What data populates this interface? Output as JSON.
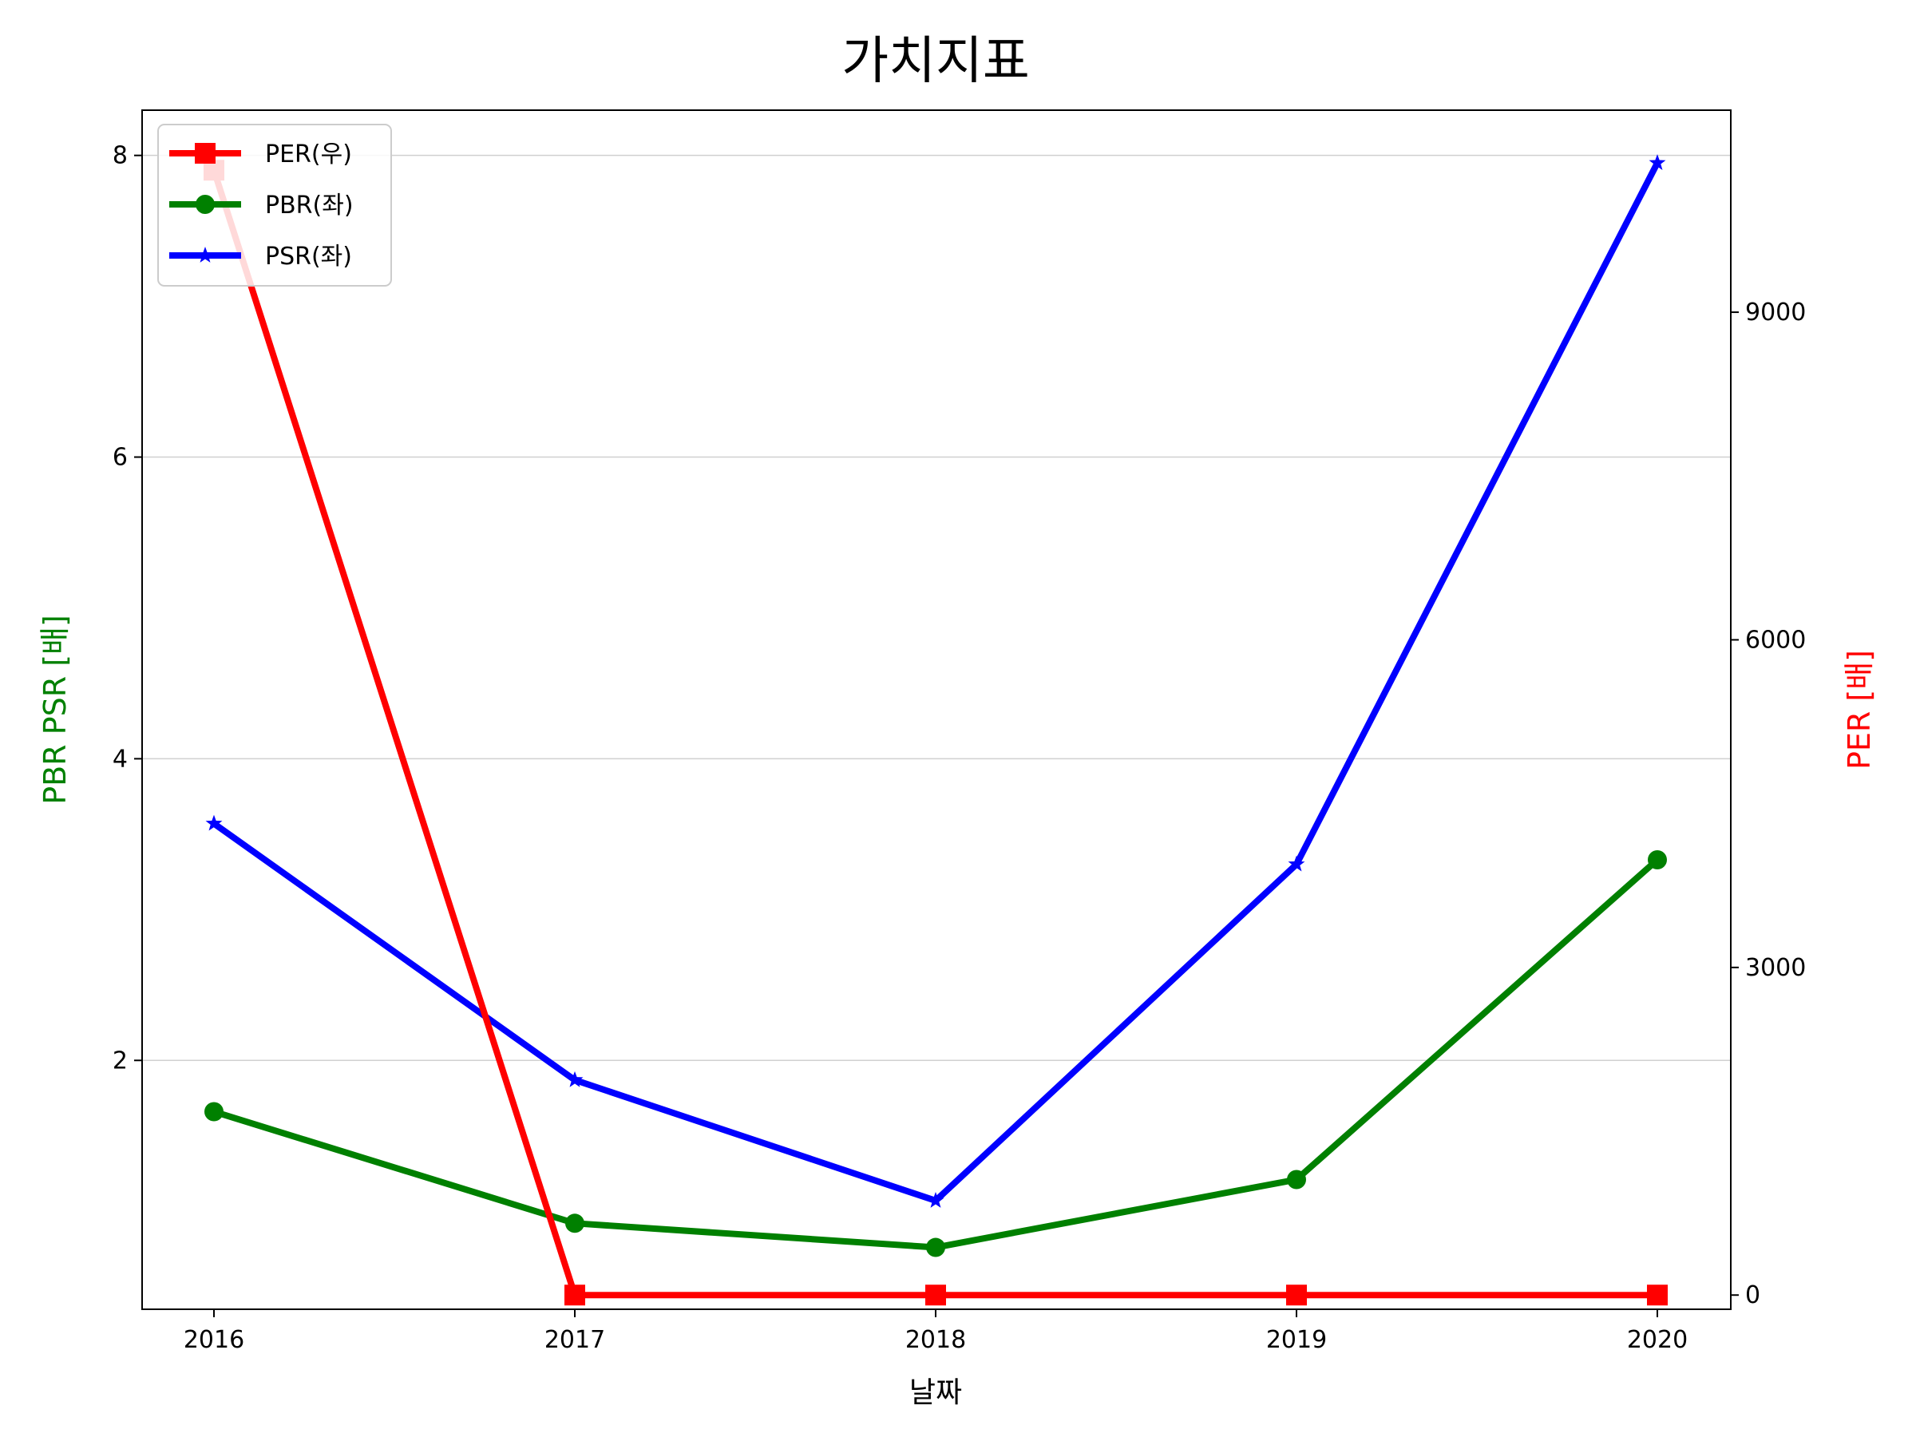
{
  "chart_data": {
    "type": "line",
    "title": "가치지표",
    "xlabel": "날짜",
    "ylabel_left": "PBR PSR [배]",
    "ylabel_right": "PER [배]",
    "categories": [
      "2016",
      "2017",
      "2018",
      "2019",
      "2020"
    ],
    "ylim_left": [
      0.35,
      8.3
    ],
    "ylim_right": [
      -130,
      10850
    ],
    "yticks_left": [
      2,
      4,
      6,
      8
    ],
    "yticks_right": [
      0,
      3000,
      6000,
      9000
    ],
    "grid": "horizontal",
    "legend_position": "top-left",
    "series": [
      {
        "name": "PER(우)",
        "axis": "right",
        "color": "#ff0000",
        "marker": "square",
        "values": [
          10300,
          0,
          0,
          0,
          0
        ]
      },
      {
        "name": "PBR(좌)",
        "axis": "left",
        "color": "#008000",
        "marker": "circle",
        "values": [
          1.66,
          0.92,
          0.76,
          1.21,
          3.33
        ]
      },
      {
        "name": "PSR(좌)",
        "axis": "left",
        "color": "#0000ff",
        "marker": "star",
        "values": [
          3.57,
          1.87,
          1.07,
          3.3,
          7.95
        ]
      }
    ],
    "colors": {
      "left_axis_label": "#008000",
      "right_axis_label": "#ff0000"
    }
  }
}
